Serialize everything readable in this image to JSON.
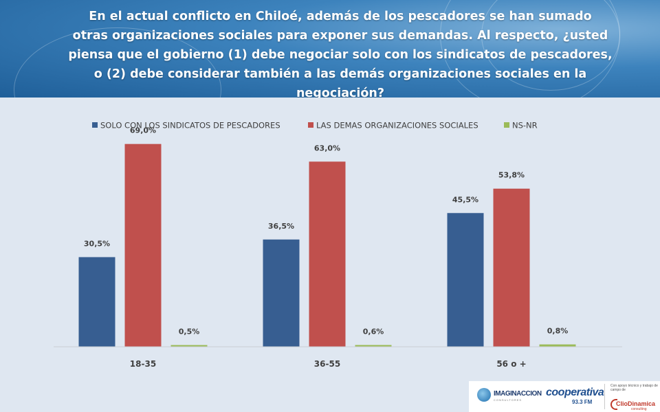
{
  "question": {
    "lines": [
      "En el actual conflicto en Chiloé, además de los pescadores se han sumado",
      "otras organizaciones sociales para exponer sus demandas.   Al respecto, ¿usted",
      "piensa que el gobierno (1) debe negociar solo con los sindicatos de pescadores,",
      "o (2) debe considerar también a las demás organizaciones sociales en la",
      "negociación?"
    ]
  },
  "chart_data": {
    "type": "bar",
    "categories": [
      "18-35",
      "36-55",
      "56 o +"
    ],
    "series": [
      {
        "name": "SOLO CON LOS SINDICATOS DE PESCADORES",
        "color": "#375e91",
        "values": [
          30.5,
          36.5,
          45.5
        ],
        "labels": [
          "30,5%",
          "36,5%",
          "45,5%"
        ]
      },
      {
        "name": "LAS DEMAS ORGANIZACIONES SOCIALES",
        "color": "#c0504d",
        "values": [
          69.0,
          63.0,
          53.8
        ],
        "labels": [
          "69,0%",
          "63,0%",
          "53,8%"
        ]
      },
      {
        "name": "NS-NR",
        "color": "#9bbb59",
        "values": [
          0.5,
          0.6,
          0.8
        ],
        "labels": [
          "0,5%",
          "0,6%",
          "0,8%"
        ]
      }
    ],
    "ylim": [
      0,
      75
    ],
    "grid": false,
    "legend": "top"
  },
  "footer": {
    "imaginaccion": "IMAGINACCION",
    "imaginaccion_sub": "CONSULTORES",
    "cooperativa": "cooperativa",
    "cooperativa_freq": "93.3 FM",
    "apoyo": "Con apoyo técnico y trabajo de campo de",
    "cliodinamica": "ClioDinamica",
    "cliodinamica_sub": "consulting"
  }
}
